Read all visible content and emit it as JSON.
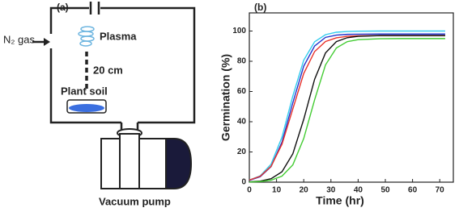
{
  "diagram": {
    "panel_label": "(a)",
    "gas_label": "N₂ gas",
    "plasma_label": "Plasma",
    "distance_label": "20 cm",
    "soil_label": "Plant soil",
    "pump_label": "Vacuum pump"
  },
  "chart_data": {
    "type": "line",
    "panel_label": "(b)",
    "x_label": "Time (hr)",
    "y_label": "Germination (%)",
    "x": [
      0,
      4,
      8,
      12,
      16,
      20,
      24,
      28,
      32,
      36,
      40,
      48,
      56,
      64,
      72
    ],
    "series": [
      {
        "color": "#33ccee",
        "values": [
          1.4,
          4.2,
          11.9,
          29.8,
          57.1,
          80.7,
          92.9,
          97.6,
          99.2,
          99.7,
          99.9,
          100,
          100,
          100,
          100
        ]
      },
      {
        "color": "#2233cc",
        "values": [
          1.2,
          3.6,
          10.3,
          26.5,
          52.6,
          76.8,
          90.1,
          95.8,
          97.3,
          97.8,
          97.9,
          98,
          98,
          98,
          98
        ]
      },
      {
        "color": "#e8312a",
        "values": [
          1.4,
          3.9,
          10.5,
          25.1,
          48.5,
          71.9,
          86.4,
          93.1,
          95.5,
          96.5,
          96.8,
          97,
          97,
          97,
          97
        ]
      },
      {
        "color": "#111111",
        "values": [
          0.2,
          0.7,
          2.3,
          6.9,
          18.8,
          41.6,
          68.1,
          85.5,
          93,
          95.6,
          96.5,
          97,
          97,
          97,
          97
        ]
      },
      {
        "color": "#44cc33",
        "values": [
          0.1,
          0.4,
          1.3,
          4.0,
          11.5,
          28.9,
          54.5,
          77.6,
          88.8,
          93.0,
          94.3,
          94.9,
          95,
          95,
          95
        ]
      }
    ],
    "xlim": [
      0,
      75
    ],
    "xticks": [
      0,
      10,
      20,
      30,
      40,
      50,
      60,
      70
    ],
    "ylim": [
      0,
      112
    ],
    "yticks": [
      0,
      20,
      40,
      60,
      80,
      100
    ]
  }
}
